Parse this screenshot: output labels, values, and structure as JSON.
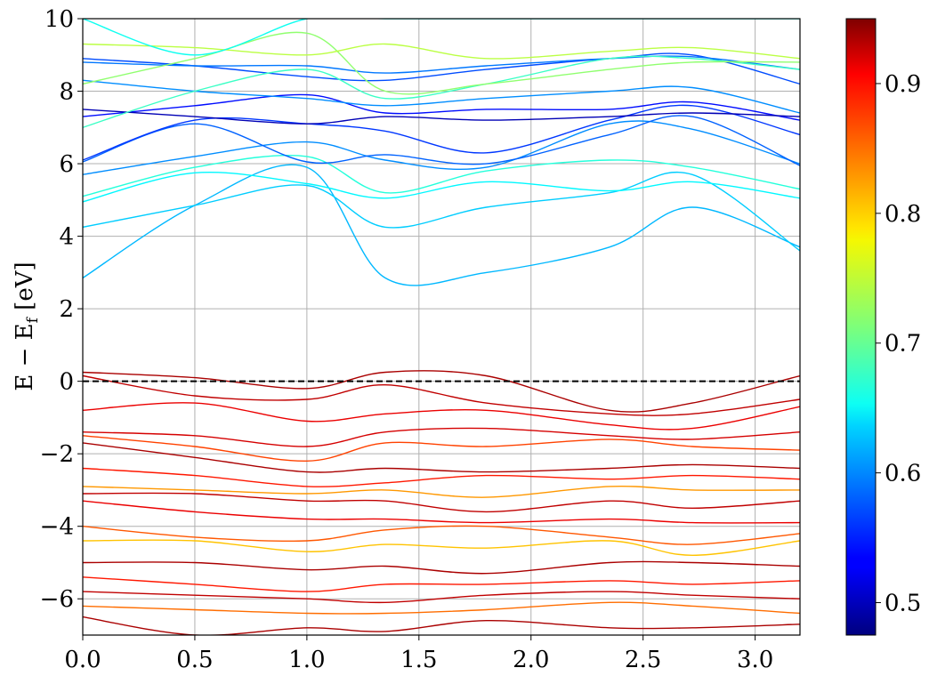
{
  "chart_data": {
    "type": "line",
    "title": "",
    "xlabel": "",
    "ylabel": "E − E_f [eV]",
    "ylabel_main": "E − E",
    "ylabel_sub": "f",
    "ylabel_tail": " [eV]",
    "xlim": [
      0.0,
      3.2
    ],
    "ylim": [
      -7,
      10
    ],
    "x_ticks": [
      0.0,
      0.5,
      1.0,
      1.5,
      2.0,
      2.5,
      3.0
    ],
    "x_tick_labels": [
      "0.0",
      "0.5",
      "1.0",
      "1.5",
      "2.0",
      "2.5",
      "3.0"
    ],
    "y_ticks": [
      -6,
      -4,
      -2,
      0,
      2,
      4,
      6,
      8,
      10
    ],
    "y_tick_labels": [
      "−6",
      "−4",
      "−2",
      "0",
      "2",
      "4",
      "6",
      "8",
      "10"
    ],
    "grid": true,
    "fermi_level": {
      "y": 0,
      "style": "dashed",
      "color": "#000000"
    },
    "colorbar": {
      "colormap": "jet",
      "range": [
        0.475,
        0.95
      ],
      "ticks": [
        0.5,
        0.6,
        0.7,
        0.8,
        0.9
      ],
      "tick_labels": [
        "0.5",
        "0.6",
        "0.7",
        "0.8",
        "0.9"
      ]
    },
    "x_kpoints": [
      0.0,
      0.5,
      1.0,
      1.35,
      1.8,
      2.35,
      2.72,
      3.2
    ],
    "conduction_bands": [
      {
        "color_value": 0.62,
        "y": [
          2.85,
          4.85,
          5.9,
          2.85,
          3.0,
          3.7,
          4.8,
          3.7
        ]
      },
      {
        "color_value": 0.63,
        "y": [
          4.25,
          4.85,
          5.4,
          4.25,
          4.8,
          5.2,
          5.7,
          3.6
        ]
      },
      {
        "color_value": 0.65,
        "y": [
          4.95,
          5.75,
          5.45,
          5.05,
          5.5,
          5.25,
          5.5,
          5.05
        ]
      },
      {
        "color_value": 0.67,
        "y": [
          5.1,
          5.9,
          6.2,
          5.2,
          5.8,
          6.1,
          5.9,
          5.3
        ]
      },
      {
        "color_value": 0.6,
        "y": [
          5.7,
          6.2,
          6.6,
          6.1,
          5.9,
          7.1,
          6.95,
          6.0
        ]
      },
      {
        "color_value": 0.58,
        "y": [
          6.05,
          7.1,
          6.05,
          6.25,
          6.0,
          6.8,
          7.3,
          5.95
        ]
      },
      {
        "color_value": 0.56,
        "y": [
          6.1,
          7.2,
          7.1,
          6.9,
          6.3,
          7.2,
          7.6,
          6.8
        ]
      },
      {
        "color_value": 0.54,
        "y": [
          7.3,
          7.6,
          7.9,
          7.4,
          7.5,
          7.5,
          7.7,
          7.2
        ]
      },
      {
        "color_value": 0.5,
        "y": [
          7.5,
          7.3,
          7.1,
          7.3,
          7.2,
          7.3,
          7.4,
          7.3
        ]
      },
      {
        "color_value": 0.6,
        "y": [
          8.3,
          8.0,
          7.8,
          7.6,
          7.8,
          8.0,
          8.1,
          7.4
        ]
      },
      {
        "color_value": 0.57,
        "y": [
          8.9,
          8.7,
          8.4,
          8.3,
          8.6,
          8.9,
          9.0,
          8.2
        ]
      },
      {
        "color_value": 0.59,
        "y": [
          8.8,
          8.7,
          8.7,
          8.5,
          8.7,
          8.9,
          8.95,
          8.6
        ]
      },
      {
        "color_value": 0.68,
        "y": [
          7.0,
          8.0,
          8.6,
          7.8,
          8.2,
          8.9,
          8.9,
          8.6
        ]
      },
      {
        "color_value": 0.72,
        "y": [
          8.2,
          8.9,
          9.6,
          8.0,
          8.2,
          8.6,
          8.8,
          8.8
        ]
      },
      {
        "color_value": 0.74,
        "y": [
          9.3,
          9.2,
          9.0,
          9.3,
          8.9,
          9.1,
          9.2,
          8.9
        ]
      },
      {
        "color_value": 0.66,
        "y": [
          10.0,
          9.0,
          10.0,
          10.0,
          10.0,
          10.0,
          10.0,
          10.0
        ]
      }
    ],
    "valence_bands": [
      {
        "color_value": 0.93,
        "y": [
          0.25,
          0.1,
          -0.2,
          0.25,
          0.15,
          -0.8,
          -0.6,
          0.15
        ]
      },
      {
        "color_value": 0.92,
        "y": [
          0.15,
          -0.4,
          -0.5,
          -0.1,
          -0.6,
          -0.9,
          -0.9,
          -0.5
        ]
      },
      {
        "color_value": 0.9,
        "y": [
          -0.8,
          -0.6,
          -1.1,
          -0.9,
          -0.8,
          -1.2,
          -1.3,
          -0.7
        ]
      },
      {
        "color_value": 0.91,
        "y": [
          -1.4,
          -1.5,
          -1.8,
          -1.4,
          -1.3,
          -1.5,
          -1.6,
          -1.4
        ]
      },
      {
        "color_value": 0.86,
        "y": [
          -1.5,
          -1.8,
          -2.2,
          -1.7,
          -1.8,
          -1.6,
          -1.8,
          -1.9
        ]
      },
      {
        "color_value": 0.93,
        "y": [
          -1.7,
          -2.1,
          -2.5,
          -2.4,
          -2.5,
          -2.4,
          -2.3,
          -2.4
        ]
      },
      {
        "color_value": 0.88,
        "y": [
          -2.4,
          -2.6,
          -2.9,
          -2.8,
          -2.6,
          -2.7,
          -2.6,
          -2.7
        ]
      },
      {
        "color_value": 0.82,
        "y": [
          -2.9,
          -3.0,
          -3.1,
          -3.0,
          -3.2,
          -2.9,
          -3.0,
          -3.0
        ]
      },
      {
        "color_value": 0.92,
        "y": [
          -3.1,
          -3.1,
          -3.3,
          -3.3,
          -3.6,
          -3.3,
          -3.5,
          -3.3
        ]
      },
      {
        "color_value": 0.9,
        "y": [
          -3.3,
          -3.6,
          -3.8,
          -3.8,
          -3.9,
          -3.8,
          -3.9,
          -3.9
        ]
      },
      {
        "color_value": 0.85,
        "y": [
          -4.0,
          -4.3,
          -4.4,
          -4.1,
          -4.0,
          -4.3,
          -4.5,
          -4.2
        ]
      },
      {
        "color_value": 0.8,
        "y": [
          -4.4,
          -4.4,
          -4.7,
          -4.5,
          -4.6,
          -4.4,
          -4.8,
          -4.4
        ]
      },
      {
        "color_value": 0.93,
        "y": [
          -5.0,
          -5.0,
          -5.2,
          -5.1,
          -5.3,
          -5.0,
          -5.0,
          -5.1
        ]
      },
      {
        "color_value": 0.88,
        "y": [
          -5.4,
          -5.6,
          -5.8,
          -5.6,
          -5.6,
          -5.5,
          -5.6,
          -5.5
        ]
      },
      {
        "color_value": 0.92,
        "y": [
          -5.8,
          -5.9,
          -6.0,
          -6.1,
          -5.9,
          -5.8,
          -5.9,
          -6.0
        ]
      },
      {
        "color_value": 0.84,
        "y": [
          -6.2,
          -6.3,
          -6.4,
          -6.4,
          -6.3,
          -6.1,
          -6.2,
          -6.4
        ]
      },
      {
        "color_value": 0.93,
        "y": [
          -6.5,
          -7.0,
          -6.8,
          -6.9,
          -6.6,
          -6.8,
          -6.8,
          -6.7
        ]
      }
    ]
  }
}
